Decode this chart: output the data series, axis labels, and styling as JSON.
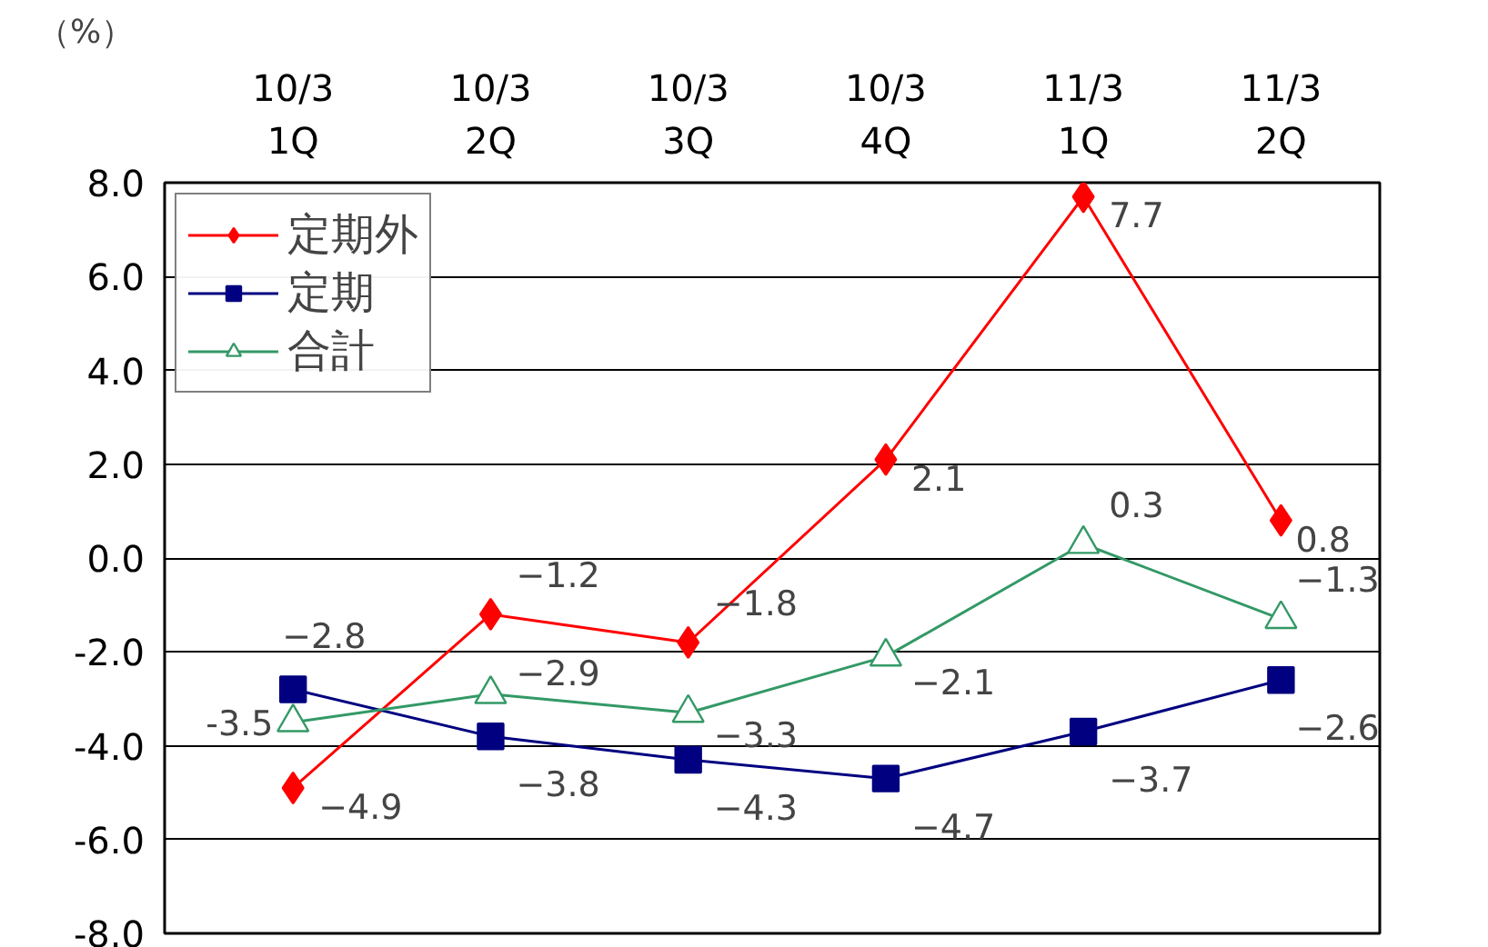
{
  "chart_data": {
    "type": "line",
    "ylabel": "（%）",
    "categories": [
      "10/3\n1Q",
      "10/3\n2Q",
      "10/3\n3Q",
      "10/3\n4Q",
      "11/3\n1Q",
      "11/3\n2Q"
    ],
    "ylim": [
      -8,
      8
    ],
    "yticks": [
      {
        "value": -8,
        "label": "-8.0"
      },
      {
        "value": -6,
        "label": "-6.0"
      },
      {
        "value": -4,
        "label": "-4.0"
      },
      {
        "value": -2,
        "label": "-2.0"
      },
      {
        "value": 0,
        "label": "0.0"
      },
      {
        "value": 2,
        "label": "2.0"
      },
      {
        "value": 4,
        "label": "4.0"
      },
      {
        "value": 6,
        "label": "6.0"
      },
      {
        "value": 8,
        "label": "8.0"
      }
    ],
    "grid": "y",
    "legend": "top left",
    "series": [
      {
        "name": "定期外",
        "color": "#ff0000",
        "marker": "diamond",
        "values": [
          -4.9,
          -1.2,
          -1.8,
          2.1,
          7.7,
          0.8
        ],
        "value_labels": [
          "−4.9",
          "−1.2",
          "−1.8",
          "2.1",
          "7.7",
          "0.8"
        ]
      },
      {
        "name": "定期",
        "color": "#000080",
        "marker": "square",
        "values": [
          -2.8,
          -3.8,
          -4.3,
          -4.7,
          -3.7,
          -2.6
        ],
        "value_labels": [
          "−2.8",
          "−3.8",
          "−4.3",
          "−4.7",
          "−3.7",
          "−2.6"
        ]
      },
      {
        "name": "合計",
        "color": "#339966",
        "marker": "triangle",
        "values": [
          -3.5,
          -2.9,
          -3.3,
          -2.1,
          0.3,
          -1.3
        ],
        "value_labels": [
          "-3.5",
          "−2.9",
          "−3.3",
          "−2.1",
          "0.3",
          "−1.3"
        ]
      }
    ]
  }
}
